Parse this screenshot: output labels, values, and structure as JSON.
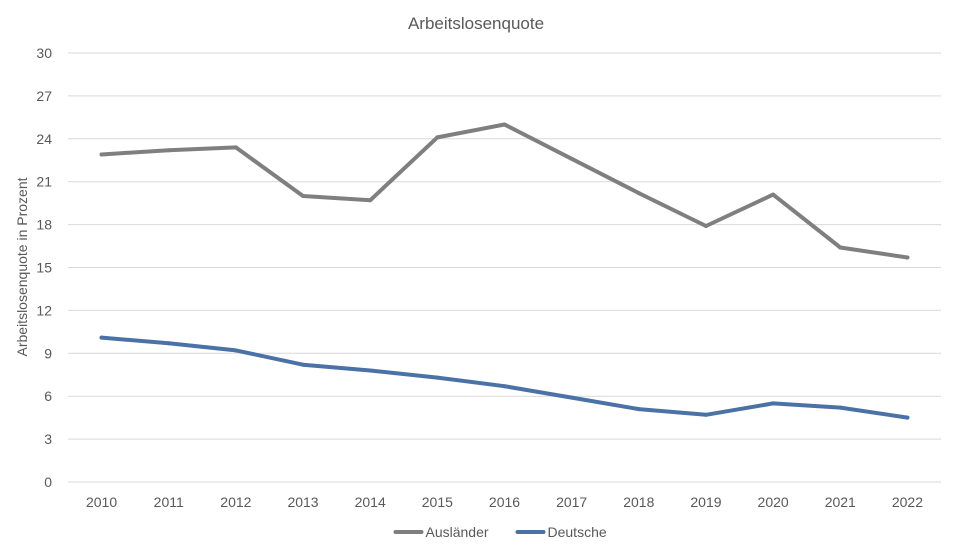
{
  "chart_data": {
    "type": "line",
    "title": "Arbeitslosenquote",
    "xlabel": "",
    "ylabel": "Arbeitslosenquote  in Prozent",
    "ylim": [
      0,
      30
    ],
    "yticks": [
      0,
      3,
      6,
      9,
      12,
      15,
      18,
      21,
      24,
      27,
      30
    ],
    "grid": true,
    "legend_position": "bottom",
    "categories": [
      "2010",
      "2011",
      "2012",
      "2013",
      "2014",
      "2015",
      "2016",
      "2017",
      "2018",
      "2019",
      "2020",
      "2021",
      "2022"
    ],
    "series": [
      {
        "name": "Ausländer",
        "color": "#7f7f7f",
        "values": [
          22.9,
          23.2,
          23.4,
          20.0,
          19.7,
          24.1,
          25.0,
          22.6,
          20.2,
          17.9,
          20.1,
          16.4,
          15.7
        ]
      },
      {
        "name": "Deutsche",
        "color": "#4a72a6",
        "values": [
          10.1,
          9.7,
          9.2,
          8.2,
          7.8,
          7.3,
          6.7,
          5.9,
          5.1,
          4.7,
          5.5,
          5.2,
          4.5
        ]
      }
    ]
  }
}
